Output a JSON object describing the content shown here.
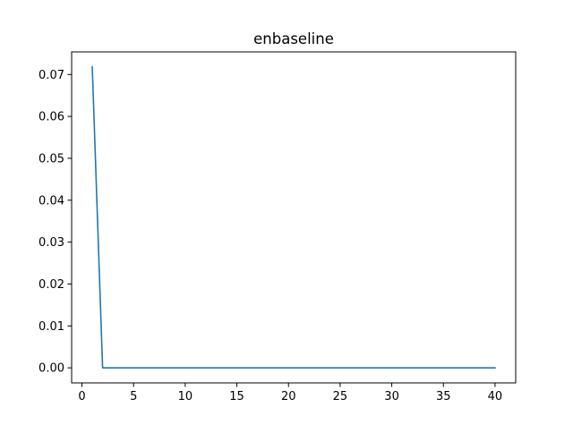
{
  "chart_data": {
    "type": "line",
    "title": "enbaseline",
    "xlabel": "",
    "ylabel": "",
    "xlim": [
      -1,
      42
    ],
    "ylim": [
      -0.0036,
      0.0754
    ],
    "x_ticks": [
      0,
      5,
      10,
      15,
      20,
      25,
      30,
      35,
      40
    ],
    "x_tick_labels": [
      "0",
      "5",
      "10",
      "15",
      "20",
      "25",
      "30",
      "35",
      "40"
    ],
    "y_ticks": [
      0.0,
      0.01,
      0.02,
      0.03,
      0.04,
      0.05,
      0.06,
      0.07
    ],
    "y_tick_labels": [
      "0.00",
      "0.01",
      "0.02",
      "0.03",
      "0.04",
      "0.05",
      "0.06",
      "0.07"
    ],
    "grid": false,
    "legend": "none",
    "series": [
      {
        "color": "#1f77b4",
        "x": [
          1,
          2,
          3,
          4,
          5,
          6,
          7,
          8,
          9,
          10,
          11,
          12,
          13,
          14,
          15,
          16,
          17,
          18,
          19,
          20,
          21,
          22,
          23,
          24,
          25,
          26,
          27,
          28,
          29,
          30,
          31,
          32,
          33,
          34,
          35,
          36,
          37,
          38,
          39,
          40
        ],
        "values": [
          0.0718,
          0,
          0,
          0,
          0,
          0,
          0,
          0,
          0,
          0,
          0,
          0,
          0,
          0,
          0,
          0,
          0,
          0,
          0,
          0,
          0,
          0,
          0,
          0,
          0,
          0,
          0,
          0,
          0,
          0,
          0,
          0,
          0,
          0,
          0,
          0,
          0,
          0,
          0,
          0
        ]
      }
    ]
  }
}
